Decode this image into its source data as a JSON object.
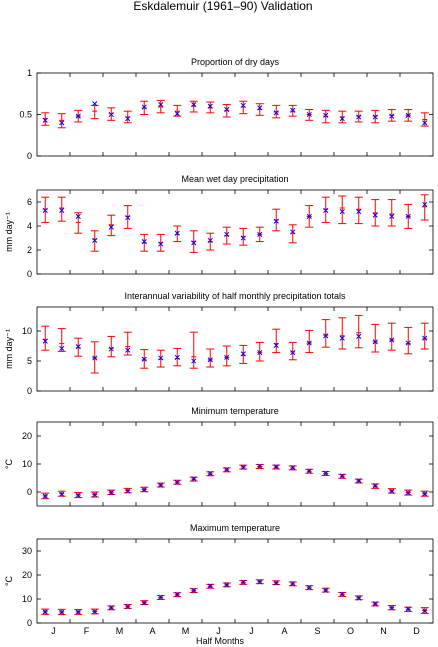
{
  "title": "Eskdalemuir (1961–90) Validation",
  "xlabel": "Half Months",
  "month_labels": [
    "J",
    "F",
    "M",
    "A",
    "M",
    "J",
    "J",
    "A",
    "S",
    "O",
    "N",
    "D"
  ],
  "colors": {
    "errorbar": "#ff0000",
    "marker": "#0000ff",
    "axes": "#000000"
  },
  "legend": "none",
  "chart_data": [
    {
      "type": "scatter",
      "title": "Proportion of dry days",
      "ylabel": "",
      "ylim": [
        0,
        1
      ],
      "yticks": [
        0,
        0.5,
        1
      ],
      "ytick_labels": [
        "0",
        "0.5",
        "1"
      ],
      "x": [
        1,
        2,
        3,
        4,
        5,
        6,
        7,
        8,
        9,
        10,
        11,
        12,
        13,
        14,
        15,
        16,
        17,
        18,
        19,
        20,
        21,
        22,
        23,
        24
      ],
      "series": [
        {
          "name": "",
          "role": "observed",
          "values": [
            0.43,
            0.4,
            0.48,
            0.63,
            0.5,
            0.45,
            0.59,
            0.62,
            0.51,
            0.62,
            0.6,
            0.56,
            0.61,
            0.58,
            0.52,
            0.55,
            0.5,
            0.49,
            0.45,
            0.47,
            0.47,
            0.48,
            0.49,
            0.4
          ]
        },
        {
          "name": "",
          "role": "simulated",
          "values": [
            0.45,
            0.43,
            0.48,
            0.54,
            0.51,
            0.47,
            0.58,
            0.59,
            0.54,
            0.6,
            0.58,
            0.55,
            0.59,
            0.56,
            0.53,
            0.54,
            0.5,
            0.48,
            0.47,
            0.48,
            0.48,
            0.49,
            0.49,
            0.44
          ],
          "lower": [
            0.37,
            0.34,
            0.41,
            0.45,
            0.43,
            0.4,
            0.5,
            0.52,
            0.48,
            0.53,
            0.52,
            0.47,
            0.51,
            0.49,
            0.46,
            0.48,
            0.43,
            0.4,
            0.4,
            0.41,
            0.4,
            0.42,
            0.42,
            0.36
          ],
          "upper": [
            0.52,
            0.51,
            0.55,
            0.61,
            0.58,
            0.54,
            0.66,
            0.67,
            0.61,
            0.66,
            0.65,
            0.62,
            0.66,
            0.63,
            0.61,
            0.61,
            0.56,
            0.55,
            0.54,
            0.54,
            0.55,
            0.56,
            0.56,
            0.52
          ]
        }
      ]
    },
    {
      "type": "scatter",
      "title": "Mean wet day precipitation",
      "ylabel": "mm day⁻¹",
      "ylim": [
        0,
        7
      ],
      "yticks": [
        0,
        2,
        4,
        6
      ],
      "ytick_labels": [
        "0",
        "2",
        "4",
        "6"
      ],
      "x": [
        1,
        2,
        3,
        4,
        5,
        6,
        7,
        8,
        9,
        10,
        11,
        12,
        13,
        14,
        15,
        16,
        17,
        18,
        19,
        20,
        21,
        22,
        23,
        24
      ],
      "series": [
        {
          "name": "",
          "role": "observed",
          "values": [
            5.3,
            5.3,
            4.8,
            2.8,
            3.9,
            4.7,
            2.7,
            2.5,
            3.4,
            2.6,
            2.8,
            3.3,
            3.0,
            3.3,
            4.4,
            3.5,
            4.8,
            5.3,
            5.2,
            5.2,
            4.9,
            4.8,
            4.8,
            5.8
          ]
        },
        {
          "name": "",
          "role": "simulated",
          "values": [
            5.4,
            5.5,
            4.3,
            2.9,
            4.1,
            4.8,
            2.6,
            2.6,
            3.3,
            2.7,
            2.7,
            3.2,
            3.1,
            3.3,
            4.5,
            3.4,
            4.8,
            5.4,
            5.5,
            5.4,
            5.1,
            5.0,
            4.8,
            5.6
          ],
          "lower": [
            4.3,
            4.4,
            3.4,
            1.9,
            3.2,
            3.8,
            1.9,
            1.9,
            2.7,
            1.8,
            2.0,
            2.5,
            2.4,
            2.7,
            3.6,
            2.6,
            3.9,
            4.3,
            4.2,
            4.2,
            4.0,
            4.0,
            3.8,
            4.5
          ],
          "upper": [
            6.4,
            6.4,
            5.1,
            3.6,
            4.9,
            5.7,
            3.3,
            3.3,
            4.0,
            3.6,
            3.4,
            3.9,
            3.8,
            3.9,
            5.4,
            4.1,
            5.7,
            6.4,
            6.5,
            6.4,
            6.2,
            6.2,
            5.8,
            6.6
          ]
        }
      ]
    },
    {
      "type": "scatter",
      "title": "Interannual variability of half monthly precipitation totals",
      "ylabel": "mm day⁻¹",
      "ylim": [
        0,
        14
      ],
      "yticks": [
        0,
        5,
        10
      ],
      "ytick_labels": [
        "0",
        "5",
        "10"
      ],
      "x": [
        1,
        2,
        3,
        4,
        5,
        6,
        7,
        8,
        9,
        10,
        11,
        12,
        13,
        14,
        15,
        16,
        17,
        18,
        19,
        20,
        21,
        22,
        23,
        24
      ],
      "series": [
        {
          "name": "",
          "role": "observed",
          "values": [
            8.3,
            7.1,
            7.4,
            5.5,
            7.0,
            6.8,
            5.3,
            5.5,
            5.6,
            5.0,
            5.2,
            5.6,
            6.2,
            6.4,
            7.6,
            6.4,
            8.0,
            9.2,
            8.8,
            9.1,
            8.2,
            8.5,
            8.0,
            8.8
          ]
        },
        {
          "name": "",
          "role": "simulated",
          "values": [
            8.6,
            7.9,
            7.2,
            5.5,
            7.1,
            7.4,
            5.2,
            5.3,
            5.4,
            5.7,
            5.2,
            5.6,
            5.9,
            6.4,
            7.9,
            6.5,
            8.0,
            9.3,
            9.2,
            9.7,
            8.2,
            8.5,
            7.9,
            8.7
          ],
          "lower": [
            6.8,
            6.6,
            5.8,
            3.0,
            5.7,
            6.0,
            3.8,
            4.0,
            4.2,
            3.8,
            4.0,
            4.2,
            4.6,
            5.0,
            6.4,
            5.2,
            6.4,
            7.3,
            7.0,
            7.2,
            6.5,
            6.8,
            6.2,
            7.0
          ],
          "upper": [
            10.8,
            10.4,
            8.8,
            8.2,
            9.1,
            9.8,
            6.9,
            6.8,
            7.1,
            9.8,
            7.0,
            7.5,
            7.6,
            8.1,
            10.3,
            8.1,
            10.1,
            11.9,
            12.2,
            12.6,
            11.1,
            11.3,
            10.6,
            11.3
          ]
        }
      ]
    },
    {
      "type": "scatter",
      "title": "Minimum temperature",
      "ylabel": "°C",
      "ylim": [
        -5,
        25
      ],
      "yticks": [
        0,
        10,
        20
      ],
      "ytick_labels": [
        "0",
        "10",
        "20"
      ],
      "x": [
        1,
        2,
        3,
        4,
        5,
        6,
        7,
        8,
        9,
        10,
        11,
        12,
        13,
        14,
        15,
        16,
        17,
        18,
        19,
        20,
        21,
        22,
        23,
        24
      ],
      "series": [
        {
          "name": "",
          "role": "observed",
          "values": [
            -1.5,
            -0.8,
            -1.2,
            -1.0,
            -0.2,
            0.4,
            0.8,
            2.4,
            3.4,
            4.7,
            6.6,
            8.0,
            8.8,
            9.2,
            9.0,
            8.7,
            7.5,
            6.7,
            5.7,
            4.0,
            2.2,
            0.3,
            -0.3,
            -0.7
          ]
        },
        {
          "name": "",
          "role": "simulated",
          "values": [
            -1.4,
            -0.6,
            -1.1,
            -0.9,
            -0.1,
            0.5,
            0.9,
            2.5,
            3.5,
            4.6,
            6.5,
            7.9,
            8.9,
            9.1,
            8.9,
            8.6,
            7.4,
            6.6,
            5.6,
            3.9,
            2.1,
            0.4,
            -0.2,
            -0.6
          ],
          "lower": [
            -2.4,
            -1.5,
            -2.0,
            -1.8,
            -0.9,
            -0.3,
            0.1,
            1.8,
            2.8,
            3.9,
            5.8,
            7.2,
            8.2,
            8.4,
            8.2,
            7.9,
            6.7,
            5.9,
            4.9,
            3.2,
            1.3,
            -0.4,
            -1.1,
            -1.5
          ],
          "upper": [
            -0.4,
            0.3,
            -0.2,
            0.0,
            0.7,
            1.3,
            1.7,
            3.2,
            4.2,
            5.3,
            7.2,
            8.6,
            9.6,
            9.8,
            9.6,
            9.3,
            8.1,
            7.3,
            6.3,
            4.6,
            2.9,
            1.2,
            0.7,
            0.3
          ]
        }
      ]
    },
    {
      "type": "scatter",
      "title": "Maximum temperature",
      "ylabel": "°C",
      "ylim": [
        0,
        35
      ],
      "yticks": [
        0,
        10,
        20,
        30
      ],
      "ytick_labels": [
        "0",
        "10",
        "20",
        "30"
      ],
      "x": [
        1,
        2,
        3,
        4,
        5,
        6,
        7,
        8,
        9,
        10,
        11,
        12,
        13,
        14,
        15,
        16,
        17,
        18,
        19,
        20,
        21,
        22,
        23,
        24
      ],
      "series": [
        {
          "name": "",
          "role": "observed",
          "values": [
            4.6,
            4.5,
            4.5,
            4.7,
            6.4,
            6.8,
            8.4,
            10.7,
            11.9,
            13.6,
            15.4,
            15.8,
            17.0,
            17.1,
            16.7,
            16.4,
            14.8,
            13.6,
            12.0,
            10.4,
            8.0,
            6.3,
            5.8,
            5.1
          ]
        },
        {
          "name": "",
          "role": "simulated",
          "values": [
            4.7,
            4.6,
            4.6,
            4.8,
            6.3,
            6.9,
            8.5,
            10.6,
            11.8,
            13.5,
            15.3,
            15.9,
            16.9,
            17.2,
            16.8,
            16.3,
            14.7,
            13.7,
            11.9,
            10.5,
            7.9,
            6.4,
            5.7,
            5.2
          ],
          "lower": [
            3.6,
            3.5,
            3.6,
            3.8,
            5.5,
            6.1,
            7.7,
            9.8,
            11.0,
            12.7,
            14.5,
            15.1,
            16.1,
            16.4,
            16.0,
            15.5,
            13.9,
            12.9,
            11.1,
            9.7,
            7.1,
            5.5,
            4.8,
            4.0
          ],
          "upper": [
            5.8,
            5.7,
            5.6,
            5.8,
            7.1,
            7.7,
            9.3,
            11.4,
            12.6,
            14.3,
            16.1,
            16.7,
            17.7,
            18.0,
            17.6,
            17.1,
            15.5,
            14.5,
            12.7,
            11.3,
            8.7,
            7.3,
            6.6,
            6.4
          ]
        }
      ]
    }
  ]
}
